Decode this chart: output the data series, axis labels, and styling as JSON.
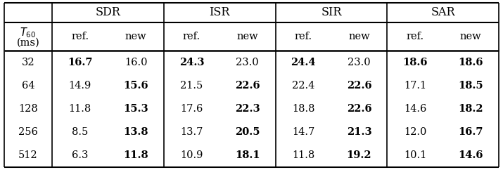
{
  "col_groups": [
    "SDR",
    "ISR",
    "SIR",
    "SAR"
  ],
  "sub_cols": [
    "ref.",
    "new"
  ],
  "rows": [
    32,
    64,
    128,
    256,
    512
  ],
  "data": {
    "SDR": {
      "ref": [
        16.7,
        14.9,
        11.8,
        8.5,
        6.3
      ],
      "new": [
        16.0,
        15.6,
        15.3,
        13.8,
        11.8
      ]
    },
    "ISR": {
      "ref": [
        24.3,
        21.5,
        17.6,
        13.7,
        10.9
      ],
      "new": [
        23.0,
        22.6,
        22.3,
        20.5,
        18.1
      ]
    },
    "SIR": {
      "ref": [
        24.4,
        22.4,
        18.8,
        14.7,
        11.8
      ],
      "new": [
        23.0,
        22.6,
        22.6,
        21.3,
        19.2
      ]
    },
    "SAR": {
      "ref": [
        18.6,
        17.1,
        14.6,
        12.0,
        10.1
      ],
      "new": [
        18.6,
        18.5,
        18.2,
        16.7,
        14.6
      ]
    }
  },
  "bold_ref": {
    "SDR": [
      true,
      false,
      false,
      false,
      false
    ],
    "ISR": [
      true,
      false,
      false,
      false,
      false
    ],
    "SIR": [
      true,
      false,
      false,
      false,
      false
    ],
    "SAR": [
      true,
      false,
      false,
      false,
      false
    ]
  },
  "bold_new": {
    "SDR": [
      false,
      true,
      true,
      true,
      true
    ],
    "ISR": [
      false,
      true,
      true,
      true,
      true
    ],
    "SIR": [
      false,
      true,
      true,
      true,
      true
    ],
    "SAR": [
      true,
      true,
      true,
      true,
      true
    ]
  },
  "background_color": "#ffffff",
  "text_color": "#000000",
  "font_size": 10.5,
  "header_font_size": 11.5
}
